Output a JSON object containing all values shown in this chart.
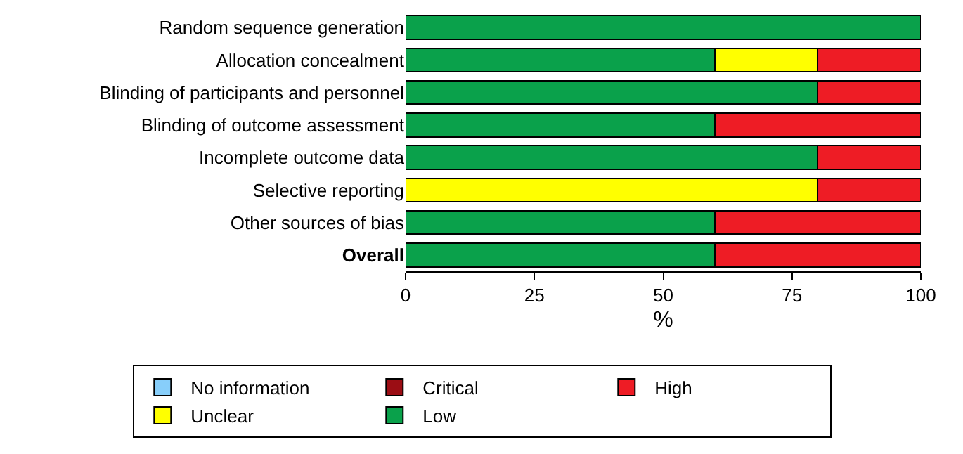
{
  "chart_data": {
    "type": "bar",
    "orientation": "horizontal",
    "stacked": true,
    "categories": [
      "Random sequence generation",
      "Allocation concealment",
      "Blinding of participants and personnel",
      "Blinding of outcome assessment",
      "Incomplete outcome data",
      "Selective reporting",
      "Other sources of bias",
      "Overall"
    ],
    "series": [
      {
        "name": "Low",
        "color": "#0aa14b",
        "values": [
          100,
          60,
          80,
          60,
          80,
          null,
          60,
          60
        ]
      },
      {
        "name": "Unclear",
        "color": "#ffff00",
        "values": [
          null,
          20,
          null,
          null,
          null,
          80,
          null,
          null
        ]
      },
      {
        "name": "High",
        "color": "#ee1c25",
        "values": [
          null,
          20,
          20,
          40,
          20,
          20,
          40,
          40
        ]
      },
      {
        "name": "Critical",
        "color": "#9b0d14",
        "values": [
          null,
          null,
          null,
          null,
          null,
          null,
          null,
          null
        ]
      },
      {
        "name": "No information",
        "color": "#87cefa",
        "values": [
          null,
          null,
          null,
          null,
          null,
          null,
          null,
          null
        ]
      }
    ],
    "xlabel": "%",
    "xlim": [
      0,
      100
    ],
    "xticks": [
      0,
      25,
      50,
      75,
      100
    ],
    "legend": "bottom"
  }
}
